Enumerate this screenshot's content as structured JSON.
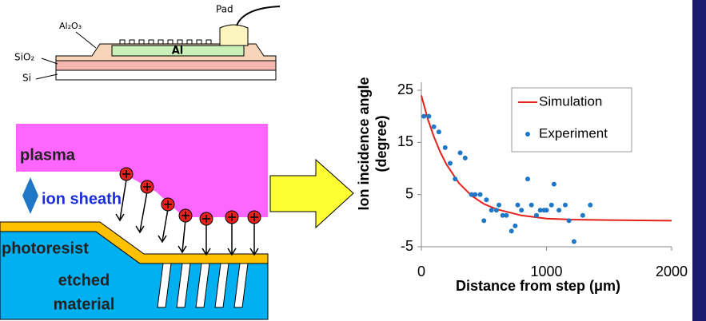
{
  "diagram": {
    "pad": "Pad",
    "al2o3": "Al₂O₃",
    "al": "Al",
    "sio2": "SiO₂",
    "si": "Si",
    "plasma": "plasma",
    "ion_sheath": "ion sheath",
    "photoresist": "photoresist",
    "etched": "etched",
    "material": "material"
  },
  "chart_data": {
    "type": "line+scatter",
    "y_label": [
      "Ion incidence angle",
      "(degree)"
    ],
    "x_label": "Distance from step (μm)",
    "xlim": [
      0,
      2000
    ],
    "xticks": [
      0,
      1000,
      2000
    ],
    "ylim": [
      -5,
      25
    ],
    "yticks": [
      -5,
      5,
      15,
      25
    ],
    "series": [
      {
        "name": "Simulation",
        "color": "#e8201c",
        "style": "line",
        "x": [
          0,
          50,
          100,
          150,
          200,
          300,
          400,
          500,
          600,
          800,
          1000,
          1200,
          1500,
          2000
        ],
        "values": [
          24,
          19.6,
          16.1,
          13.2,
          10.8,
          7.2,
          4.8,
          3.2,
          2.2,
          1,
          0.4,
          0.2,
          0.1,
          0
        ]
      },
      {
        "name": "Experiment",
        "color": "#1f77c8",
        "style": "scatter",
        "x": [
          20,
          60,
          100,
          140,
          190,
          230,
          270,
          310,
          350,
          400,
          430,
          470,
          500,
          520,
          560,
          600,
          620,
          650,
          680,
          720,
          750,
          770,
          800,
          850,
          880,
          920,
          950,
          980,
          1000,
          1040,
          1060,
          1100,
          1150,
          1180,
          1220,
          1290,
          1350
        ],
        "values": [
          20,
          20,
          18,
          17,
          14,
          11,
          8,
          13,
          12,
          5,
          5,
          5,
          0,
          4,
          2,
          2,
          3,
          1,
          1,
          -2,
          -1,
          3,
          2,
          8,
          3,
          1,
          2,
          2,
          2,
          3,
          7,
          2,
          3,
          0,
          -4,
          1,
          3
        ]
      }
    ]
  }
}
